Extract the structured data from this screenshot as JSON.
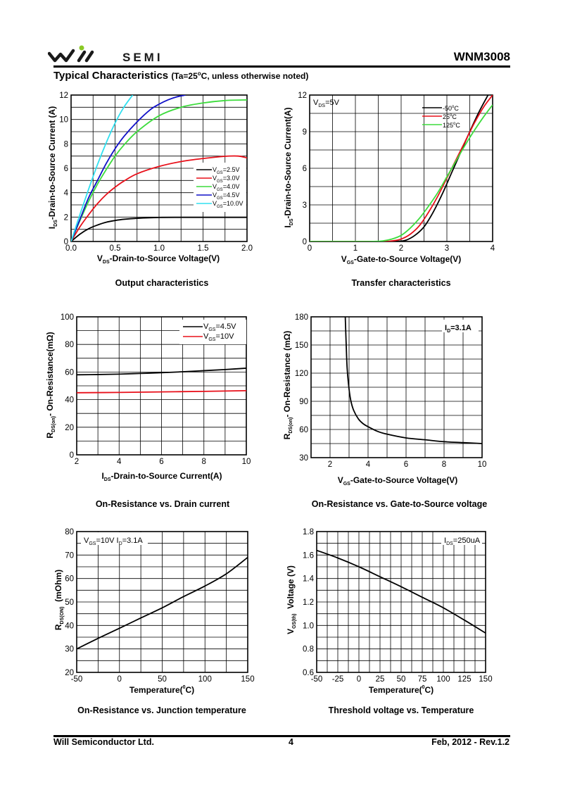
{
  "header": {
    "logo_text": "SEMI",
    "part_number": "WNM3008",
    "heading": "Typical Characteristics",
    "heading_condition_prefix": "(Ta=25",
    "heading_condition_deg": "o",
    "heading_condition_suffix": "C, unless otherwise noted)"
  },
  "footer": {
    "company": "Will Semiconductor Ltd.",
    "page": "4",
    "revision": "Feb, 2012 - Rev.1.2"
  },
  "colors": {
    "black": "#000000",
    "red": "#e8101a",
    "green": "#3ddc3d",
    "blue": "#1010c8",
    "cyan": "#30e0f0"
  },
  "chart_data": [
    {
      "type": "line",
      "caption": "Output characteristics",
      "xlabel_main": "V",
      "xlabel_sub": "DS",
      "xlabel_rest": "-Drain-to-Source Voltage(V)",
      "ylabel_main": "I",
      "ylabel_sub": "DS",
      "ylabel_rest": "-Drain-to-Source Current (A)",
      "xlim": [
        0,
        2.0
      ],
      "ylim": [
        0,
        12
      ],
      "xticks": [
        "0.0",
        "0.5",
        "1.0",
        "1.5",
        "2.0"
      ],
      "yticks": [
        "0",
        "2",
        "4",
        "6",
        "8",
        "10",
        "12"
      ],
      "legend_position": "center-right",
      "series": [
        {
          "name_main": "V",
          "name_sub": "GS",
          "name_rest": "=2.5V",
          "color": "#000000",
          "x": [
            0,
            0.1,
            0.2,
            0.3,
            0.4,
            0.5,
            0.6,
            0.75,
            1.0,
            1.25,
            1.5,
            1.75,
            2.0
          ],
          "y": [
            0,
            0.6,
            1.05,
            1.35,
            1.58,
            1.72,
            1.82,
            1.9,
            1.97,
            1.98,
            1.98,
            1.98,
            1.98
          ]
        },
        {
          "name_main": "V",
          "name_sub": "GS",
          "name_rest": "=3.0V",
          "color": "#e8101a",
          "x": [
            0,
            0.1,
            0.2,
            0.3,
            0.4,
            0.5,
            0.6,
            0.75,
            1.0,
            1.25,
            1.5,
            1.75,
            1.9,
            2.0
          ],
          "y": [
            0,
            1.2,
            2.2,
            3.1,
            3.85,
            4.45,
            4.95,
            5.55,
            6.15,
            6.55,
            6.8,
            6.98,
            7.0,
            6.85
          ]
        },
        {
          "name_main": "V",
          "name_sub": "GS",
          "name_rest": "=4.0V",
          "color": "#3ddc3d",
          "x": [
            0,
            0.1,
            0.2,
            0.3,
            0.4,
            0.5,
            0.6,
            0.75,
            1.0,
            1.25,
            1.5,
            1.75,
            2.0
          ],
          "y": [
            0,
            1.7,
            3.3,
            4.7,
            5.9,
            7.0,
            7.9,
            9.0,
            10.3,
            11.0,
            11.35,
            11.55,
            11.6
          ]
        },
        {
          "name_main": "V",
          "name_sub": "GS",
          "name_rest": "=4.5V",
          "color": "#1010c8",
          "x": [
            0,
            0.1,
            0.2,
            0.3,
            0.4,
            0.5,
            0.6,
            0.75,
            0.9,
            1.0,
            1.1,
            1.2,
            1.3
          ],
          "y": [
            0,
            1.8,
            3.6,
            5.0,
            6.4,
            7.6,
            8.6,
            9.8,
            10.8,
            11.25,
            11.6,
            11.85,
            12.0
          ]
        },
        {
          "name_main": "V",
          "name_sub": "GS",
          "name_rest": "=10.0V",
          "color": "#30e0f0",
          "x": [
            0,
            0.1,
            0.2,
            0.3,
            0.4,
            0.5,
            0.6,
            0.7
          ],
          "y": [
            0,
            2.2,
            4.3,
            6.3,
            8.1,
            9.7,
            11.0,
            12.0
          ]
        }
      ]
    },
    {
      "type": "line",
      "caption": "Transfer characteristics",
      "xlabel_main": "V",
      "xlabel_sub": "GS",
      "xlabel_rest": "-Gate-to-Source Voltage(V)",
      "ylabel_main": "I",
      "ylabel_sub": "DS",
      "ylabel_rest": "-Drain-to-Source Current(A)",
      "xlim": [
        0,
        4
      ],
      "ylim": [
        0,
        12
      ],
      "xticks": [
        "0",
        "1",
        "2",
        "3",
        "4"
      ],
      "yticks": [
        "0",
        "3",
        "6",
        "9",
        "12"
      ],
      "annotation_main": "V",
      "annotation_sub": "DS",
      "annotation_rest": "=5V",
      "legend_position": "top-right",
      "series": [
        {
          "name": "-50",
          "name_deg": "o",
          "name_rest": "C",
          "color": "#000000",
          "x": [
            0,
            1.5,
            1.9,
            2.1,
            2.3,
            2.5,
            2.7,
            2.9,
            3.1,
            3.3,
            3.5,
            3.7,
            3.9
          ],
          "y": [
            0,
            0,
            0.02,
            0.1,
            0.5,
            1.2,
            2.4,
            3.9,
            5.6,
            7.3,
            9.0,
            10.6,
            12.0
          ]
        },
        {
          "name": "25",
          "name_deg": "o",
          "name_rest": "C",
          "color": "#e8101a",
          "x": [
            0,
            1.5,
            1.8,
            2.0,
            2.2,
            2.4,
            2.6,
            2.8,
            3.0,
            3.2,
            3.4,
            3.6,
            3.8,
            4.0
          ],
          "y": [
            0,
            0,
            0.05,
            0.2,
            0.6,
            1.3,
            2.4,
            3.7,
            5.2,
            6.7,
            8.2,
            9.7,
            11.0,
            12.0
          ]
        },
        {
          "name": "125",
          "name_deg": "o",
          "name_rest": "C",
          "color": "#3ddc3d",
          "x": [
            0,
            1.3,
            1.6,
            1.8,
            2.0,
            2.2,
            2.4,
            2.6,
            2.8,
            3.0,
            3.2,
            3.4,
            3.6,
            3.8,
            4.0
          ],
          "y": [
            0,
            0,
            0.05,
            0.2,
            0.5,
            1.1,
            1.9,
            2.9,
            4.0,
            5.3,
            6.6,
            7.9,
            9.1,
            10.2,
            11.2
          ]
        }
      ]
    },
    {
      "type": "line",
      "caption": "On-Resistance vs. Drain current",
      "xlabel_main": "I",
      "xlabel_sub": "DS",
      "xlabel_rest": "-Drain-to-Source Current(A)",
      "ylabel_main": "R",
      "ylabel_sub": "DS(on)",
      "ylabel_rest": "- On-Resistance(mΩ)",
      "xlim": [
        2,
        10
      ],
      "ylim": [
        0,
        100
      ],
      "xticks": [
        "2",
        "4",
        "6",
        "8",
        "10"
      ],
      "yticks": [
        "0",
        "20",
        "40",
        "60",
        "80",
        "100"
      ],
      "legend_position": "top-right",
      "series": [
        {
          "name_main": "V",
          "name_sub": "GS",
          "name_rest": "=4.5V",
          "color": "#000000",
          "x": [
            2,
            3,
            4,
            5,
            6,
            7,
            8,
            9,
            10
          ],
          "y": [
            58,
            58.2,
            58.5,
            59,
            59.5,
            60.2,
            61,
            61.8,
            62.8
          ]
        },
        {
          "name_main": "V",
          "name_sub": "GS",
          "name_rest": "=10V",
          "color": "#e8101a",
          "x": [
            2,
            4,
            6,
            8,
            10
          ],
          "y": [
            45,
            45.2,
            45.6,
            46,
            46.5
          ]
        }
      ]
    },
    {
      "type": "line",
      "caption": "On-Resistance vs. Gate-to-Source voltage",
      "xlabel_main": "V",
      "xlabel_sub": "GS",
      "xlabel_rest": "-Gate-to-Source Voltage(V)",
      "ylabel_main": "R",
      "ylabel_sub": "DS(on)",
      "ylabel_rest": "- On-Resistance (mΩ)",
      "xlim": [
        1,
        10
      ],
      "ylim": [
        30,
        180
      ],
      "xticks": [
        "2",
        "4",
        "6",
        "8",
        "10"
      ],
      "yticks": [
        "30",
        "60",
        "90",
        "120",
        "150",
        "180"
      ],
      "annotation_main": "I",
      "annotation_sub": "D",
      "annotation_rest": "=3.1A",
      "series": [
        {
          "name": "R_DS(on)",
          "color": "#000000",
          "x": [
            2.8,
            2.85,
            2.9,
            3.0,
            3.1,
            3.25,
            3.5,
            3.75,
            4.0,
            4.5,
            5,
            6,
            7,
            8,
            9,
            10
          ],
          "y": [
            180,
            150,
            125,
            103,
            90,
            80,
            71,
            66,
            63,
            58,
            55,
            51,
            49,
            47,
            46,
            45
          ]
        }
      ]
    },
    {
      "type": "line",
      "caption": "On-Resistance vs. Junction temperature",
      "xlabel_main": "Temperature(",
      "xlabel_deg": "0",
      "xlabel_rest": "C)",
      "ylabel_main": "R",
      "ylabel_sub": "DS(ON)",
      "ylabel_rest": "  (mOhm)",
      "xlim": [
        -50,
        150
      ],
      "ylim": [
        20,
        80
      ],
      "xticks": [
        "-50",
        "0",
        "50",
        "100",
        "150"
      ],
      "yticks": [
        "20",
        "30",
        "40",
        "50",
        "60",
        "70",
        "80"
      ],
      "annotation_a_main": "V",
      "annotation_a_sub": "GS",
      "annotation_a_rest": "=10V I",
      "annotation_b_sub": "D",
      "annotation_b_rest": "=3.1A",
      "series": [
        {
          "name": "R_DS(ON)",
          "color": "#000000",
          "x": [
            -50,
            -25,
            0,
            25,
            50,
            75,
            100,
            125,
            150
          ],
          "y": [
            30,
            34.5,
            38.8,
            43.2,
            47.5,
            52.3,
            56.8,
            62,
            69
          ]
        }
      ]
    },
    {
      "type": "line",
      "caption": "Threshold voltage vs. Temperature",
      "xlabel_main": "Temperature(",
      "xlabel_deg": "0",
      "xlabel_rest": "C)",
      "ylabel_main": "V",
      "ylabel_sub": "GS(th)",
      "ylabel_rest": "  Voltage (V)",
      "xlim": [
        -50,
        150
      ],
      "ylim": [
        0.6,
        1.8
      ],
      "xticks": [
        "-50",
        "-25",
        "0",
        "25",
        "50",
        "75",
        "100",
        "125",
        "150"
      ],
      "yticks": [
        "0.6",
        "0.8",
        "1.0",
        "1.2",
        "1.4",
        "1.6",
        "1.8"
      ],
      "annotation_main": "I",
      "annotation_sub": "DS",
      "annotation_rest": "=250uA",
      "series": [
        {
          "name": "V_GS(th)",
          "color": "#000000",
          "x": [
            -50,
            -25,
            0,
            25,
            50,
            75,
            100,
            125,
            150
          ],
          "y": [
            1.64,
            1.575,
            1.5,
            1.415,
            1.33,
            1.24,
            1.15,
            1.045,
            0.935
          ]
        }
      ]
    }
  ]
}
